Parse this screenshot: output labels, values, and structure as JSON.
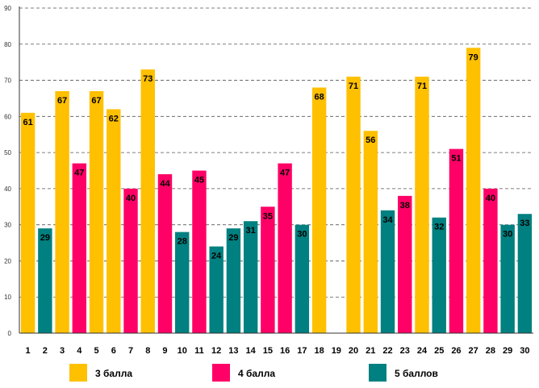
{
  "chart_data": {
    "type": "bar",
    "title": "",
    "xlabel": "",
    "ylabel": "",
    "ylim": [
      0,
      90
    ],
    "ytick_values": [
      0,
      10,
      20,
      30,
      40,
      50,
      60,
      70,
      80,
      90
    ],
    "grid": true,
    "legend_position": "bottom",
    "categories": [
      "1",
      "2",
      "3",
      "4",
      "5",
      "6",
      "7",
      "8",
      "9",
      "10",
      "11",
      "12",
      "13",
      "14",
      "15",
      "16",
      "17",
      "18",
      "19",
      "20",
      "21",
      "22",
      "23",
      "24",
      "25",
      "26",
      "27",
      "28",
      "29",
      "30"
    ],
    "values": [
      61,
      29,
      67,
      47,
      67,
      62,
      40,
      73,
      44,
      28,
      45,
      24,
      29,
      31,
      35,
      47,
      30,
      68,
      null,
      71,
      56,
      34,
      38,
      71,
      32,
      51,
      79,
      40,
      30,
      33
    ],
    "groups": [
      "3",
      "5",
      "3",
      "4",
      "3",
      "3",
      "4",
      "3",
      "4",
      "5",
      "4",
      "5",
      "5",
      "5",
      "4",
      "4",
      "5",
      "3",
      "",
      "3",
      "3",
      "5",
      "4",
      "3",
      "5",
      "4",
      "3",
      "4",
      "5",
      "5"
    ],
    "series": [
      {
        "key": "3",
        "name": "3 балла",
        "color": "#FFC000"
      },
      {
        "key": "4",
        "name": "4 балла",
        "color": "#FF0066"
      },
      {
        "key": "5",
        "name": "5 баллов",
        "color": "#008080"
      }
    ]
  }
}
